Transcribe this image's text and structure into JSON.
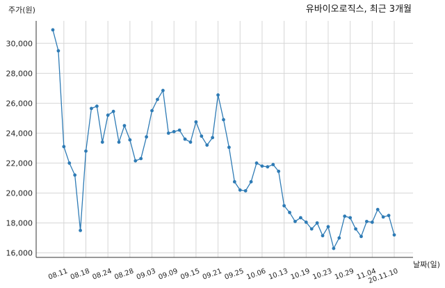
{
  "chart_data": {
    "type": "line",
    "title": "유바이오로직스, 최근 3개월",
    "ylabel": "주가(원)",
    "xlabel": "날짜(일)",
    "ylim": [
      15700,
      31500
    ],
    "yticks": [
      16000,
      18000,
      20000,
      22000,
      24000,
      26000,
      28000,
      30000
    ],
    "ytick_labels": [
      "16,000",
      "18,000",
      "20,000",
      "22,000",
      "24,000",
      "26,000",
      "28,000",
      "30,000"
    ],
    "xtick_labels": [
      "08.11",
      "08.18",
      "08.24",
      "08.28",
      "09.03",
      "09.09",
      "09.15",
      "09.21",
      "09.25",
      "10.06",
      "10.13",
      "10.19",
      "10.23",
      "10.29",
      "11.04",
      "20.11.10"
    ],
    "xtick_index": [
      2,
      6,
      10,
      14,
      18,
      22,
      26,
      30,
      34,
      38,
      42,
      46,
      50,
      54,
      58,
      62
    ],
    "grid": true,
    "series": [
      {
        "color": "#2e7bb5",
        "values": [
          30900,
          29500,
          23100,
          22000,
          21200,
          17500,
          22800,
          25650,
          25800,
          23400,
          25200,
          25450,
          23400,
          24500,
          23550,
          22150,
          22300,
          23750,
          25500,
          26250,
          26850,
          24000,
          24100,
          24200,
          23600,
          23400,
          24750,
          23800,
          23200,
          23700,
          26550,
          24900,
          23050,
          20750,
          20200,
          20150,
          20750,
          22000,
          21800,
          21750,
          21900,
          21450,
          19150,
          18700,
          18100,
          18350,
          18050,
          17600,
          18000,
          17150,
          17750,
          16300,
          17000,
          18450,
          18350,
          17600,
          17100,
          18100,
          18050,
          18900,
          18400,
          18500,
          17200
        ]
      }
    ]
  }
}
